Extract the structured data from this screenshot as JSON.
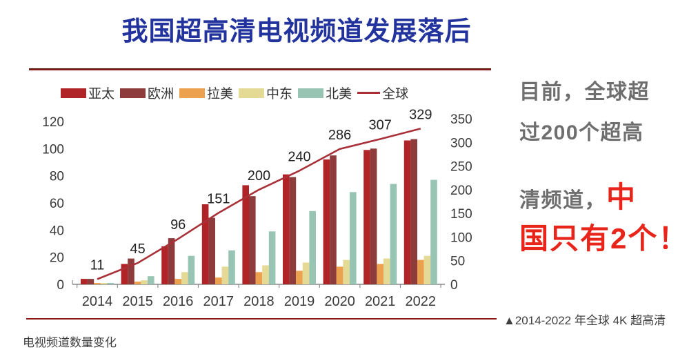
{
  "title": {
    "text": "我国超高清电视频道发展落后"
  },
  "side_note": {
    "lines": [
      {
        "parts": [
          {
            "text": "目前，全球超",
            "style": "gray"
          }
        ]
      },
      {
        "parts": [
          {
            "text": "过200个超高",
            "style": "gray"
          }
        ]
      },
      {
        "parts": [
          {
            "text": "清频道，",
            "style": "gray"
          },
          {
            "text": "中",
            "style": "red-big"
          }
        ]
      },
      {
        "parts": [
          {
            "text": "国只有2个！",
            "style": "red-big"
          }
        ]
      }
    ]
  },
  "caption": {
    "line1": "▲2014-2022 年全球 4K 超高清",
    "line2": "电视频道数量变化"
  },
  "colors": {
    "title_blue": "#22339E",
    "divider_red": "#8C1D17",
    "note_gray": "#6E6E6E",
    "note_red": "#E8251A",
    "axis_text": "#3A3A3A",
    "caption_text": "#3F3F3F"
  },
  "chart_data": {
    "type": "bar+line",
    "categories": [
      "2014",
      "2015",
      "2016",
      "2017",
      "2018",
      "2019",
      "2020",
      "2021",
      "2022"
    ],
    "bar_series": [
      {
        "key": "ap",
        "name": "亚太",
        "color": "#B02327",
        "values": [
          4,
          15,
          28,
          59,
          73,
          81,
          92,
          99,
          106
        ]
      },
      {
        "key": "eu",
        "name": "欧洲",
        "color": "#8E3B3B",
        "values": [
          4,
          19,
          34,
          49,
          65,
          79,
          95,
          100,
          107
        ]
      },
      {
        "key": "la",
        "name": "拉美",
        "color": "#EBA14E",
        "values": [
          1,
          2,
          4,
          5,
          9,
          10,
          13,
          15,
          18
        ]
      },
      {
        "key": "me",
        "name": "中东",
        "color": "#E4DA96",
        "values": [
          1,
          3,
          9,
          13,
          14,
          16,
          18,
          19,
          21
        ]
      },
      {
        "key": "na",
        "name": "北美",
        "color": "#97C4B3",
        "values": [
          1,
          6,
          21,
          25,
          39,
          54,
          68,
          74,
          77
        ]
      }
    ],
    "line_series": {
      "key": "global",
      "name": "全球",
      "color": "#A93038",
      "axis": "right",
      "values": [
        11,
        45,
        96,
        151,
        200,
        240,
        286,
        307,
        329
      ],
      "labels_shown": true
    },
    "left_axis": {
      "min": 0,
      "max": 120,
      "step": 20
    },
    "right_axis": {
      "min": 0,
      "max": 350,
      "step": 50
    },
    "legend_position": "top",
    "grid": false
  }
}
